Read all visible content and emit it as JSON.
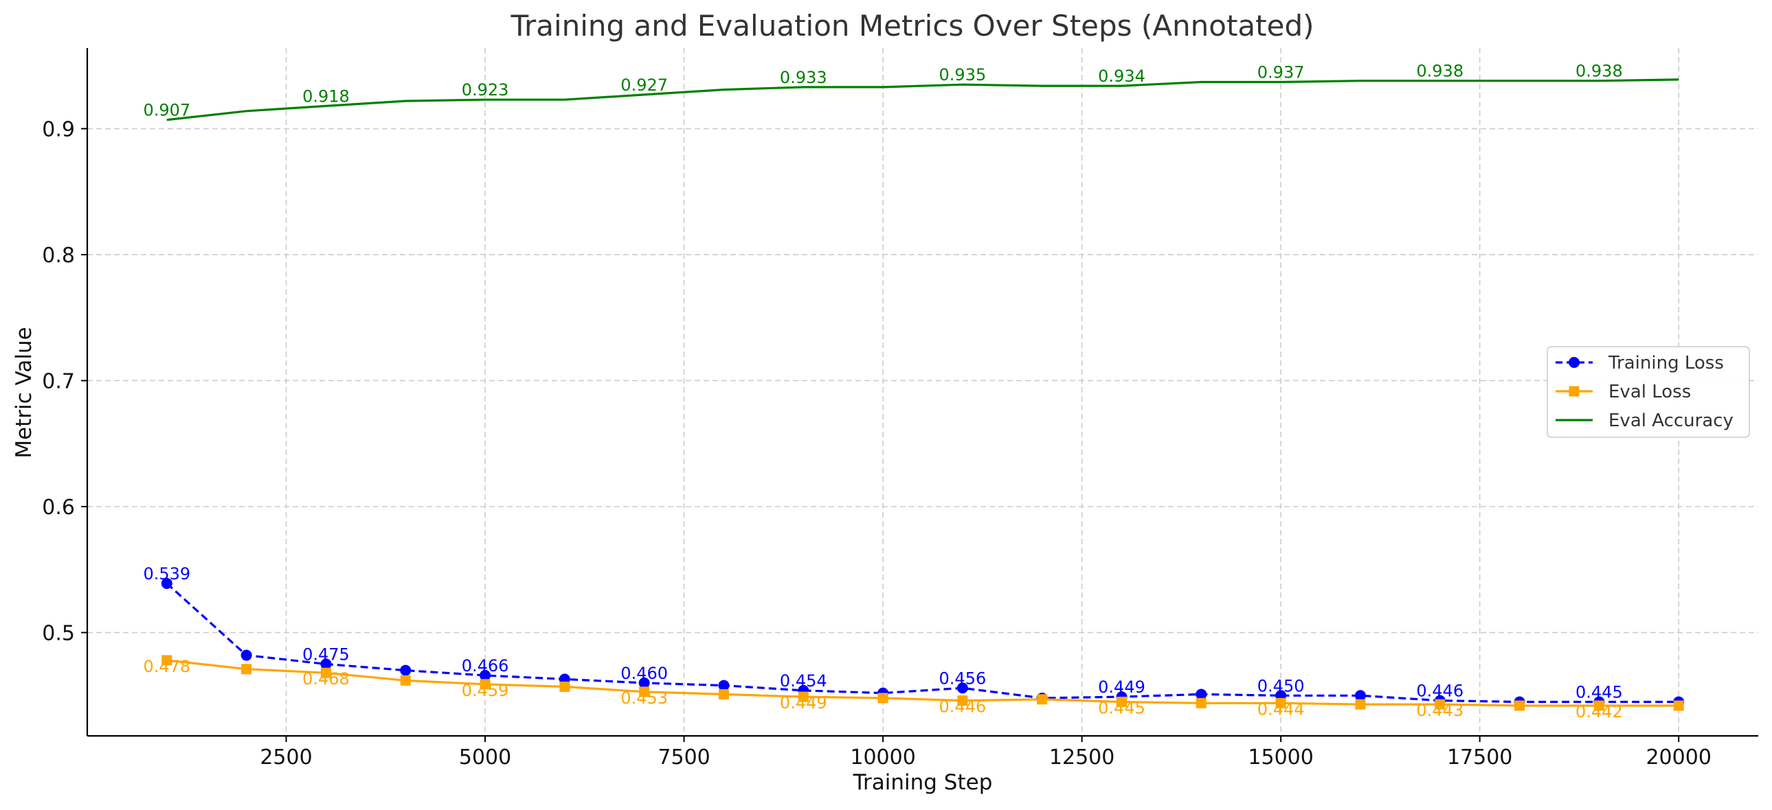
{
  "chart_data": {
    "type": "line",
    "title": "Training and Evaluation Metrics Over Steps (Annotated)",
    "xlabel": "Training Step",
    "ylabel": "Metric Value",
    "xlim": [
      0,
      21000
    ],
    "ylim": [
      0.418,
      0.964
    ],
    "grid": true,
    "legend_position": "center-right",
    "x_ticks": [
      2500,
      5000,
      7500,
      10000,
      12500,
      15000,
      17500,
      20000
    ],
    "y_ticks": [
      0.5,
      0.6,
      0.7,
      0.8,
      0.9
    ],
    "x": [
      1000,
      2000,
      3000,
      4000,
      5000,
      6000,
      7000,
      8000,
      9000,
      10000,
      11000,
      12000,
      13000,
      14000,
      15000,
      16000,
      17000,
      18000,
      19000,
      20000
    ],
    "series": [
      {
        "name": "Training Loss",
        "color": "#0000ff",
        "line_style": "dashed",
        "marker": "circle",
        "values": [
          0.539,
          0.482,
          0.475,
          0.47,
          0.466,
          0.463,
          0.46,
          0.458,
          0.454,
          0.452,
          0.456,
          0.448,
          0.449,
          0.451,
          0.45,
          0.45,
          0.446,
          0.445,
          0.445,
          0.445
        ],
        "annotations": [
          {
            "x": 1000,
            "label": "0.539"
          },
          {
            "x": 3000,
            "label": "0.475"
          },
          {
            "x": 5000,
            "label": "0.466"
          },
          {
            "x": 7000,
            "label": "0.460"
          },
          {
            "x": 9000,
            "label": "0.454"
          },
          {
            "x": 11000,
            "label": "0.456"
          },
          {
            "x": 13000,
            "label": "0.449"
          },
          {
            "x": 15000,
            "label": "0.450"
          },
          {
            "x": 17000,
            "label": "0.446"
          },
          {
            "x": 19000,
            "label": "0.445"
          }
        ]
      },
      {
        "name": "Eval Loss",
        "color": "#ffa500",
        "line_style": "solid",
        "marker": "square",
        "values": [
          0.478,
          0.471,
          0.468,
          0.462,
          0.459,
          0.457,
          0.453,
          0.451,
          0.449,
          0.448,
          0.446,
          0.447,
          0.445,
          0.444,
          0.444,
          0.443,
          0.443,
          0.442,
          0.442,
          0.442
        ],
        "annotations": [
          {
            "x": 1000,
            "label": "0.478"
          },
          {
            "x": 3000,
            "label": "0.468"
          },
          {
            "x": 5000,
            "label": "0.459"
          },
          {
            "x": 7000,
            "label": "0.453"
          },
          {
            "x": 9000,
            "label": "0.449"
          },
          {
            "x": 11000,
            "label": "0.446"
          },
          {
            "x": 13000,
            "label": "0.445"
          },
          {
            "x": 15000,
            "label": "0.444"
          },
          {
            "x": 17000,
            "label": "0.443"
          },
          {
            "x": 19000,
            "label": "0.442"
          }
        ]
      },
      {
        "name": "Eval Accuracy",
        "color": "#008000",
        "line_style": "solid",
        "marker": "none",
        "values": [
          0.907,
          0.914,
          0.918,
          0.922,
          0.923,
          0.923,
          0.927,
          0.931,
          0.933,
          0.933,
          0.935,
          0.934,
          0.934,
          0.937,
          0.937,
          0.938,
          0.938,
          0.938,
          0.938,
          0.939
        ],
        "annotations": [
          {
            "x": 1000,
            "label": "0.907"
          },
          {
            "x": 3000,
            "label": "0.918"
          },
          {
            "x": 5000,
            "label": "0.923"
          },
          {
            "x": 7000,
            "label": "0.927"
          },
          {
            "x": 9000,
            "label": "0.933"
          },
          {
            "x": 11000,
            "label": "0.935"
          },
          {
            "x": 13000,
            "label": "0.934"
          },
          {
            "x": 15000,
            "label": "0.937"
          },
          {
            "x": 17000,
            "label": "0.938"
          },
          {
            "x": 19000,
            "label": "0.938"
          }
        ]
      }
    ]
  }
}
